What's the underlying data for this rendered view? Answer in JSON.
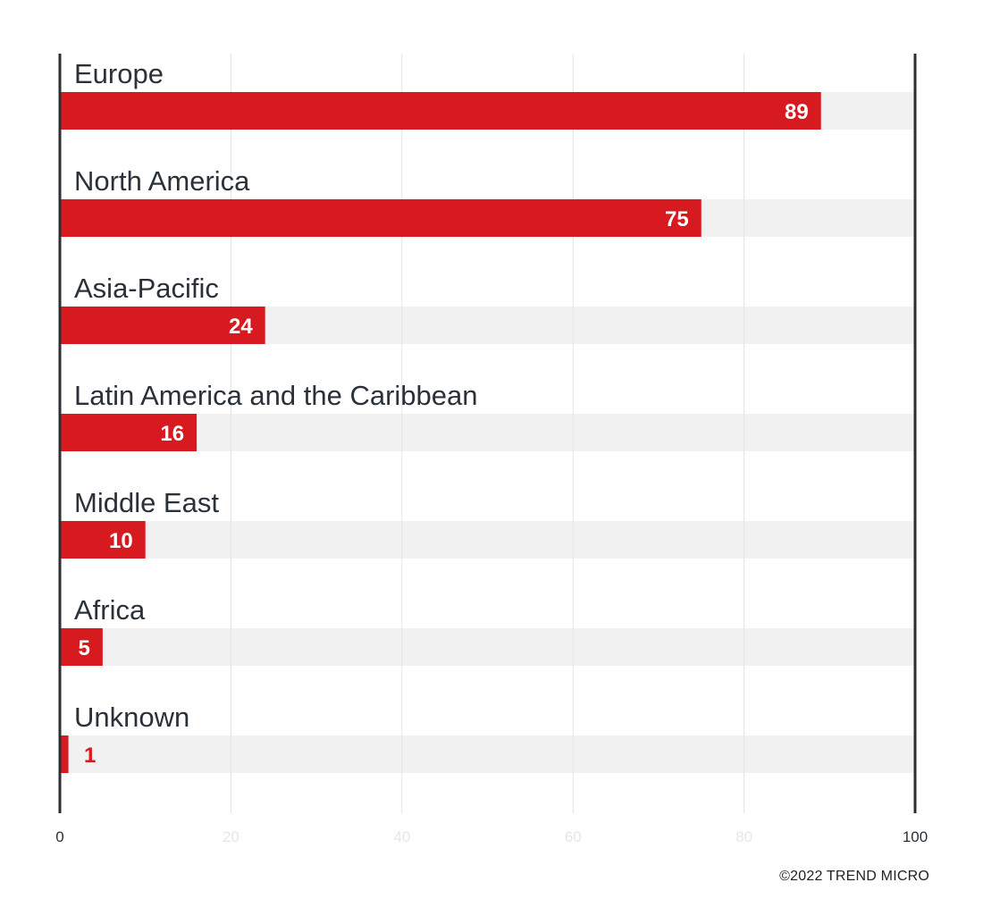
{
  "colors": {
    "bar": "#d71920",
    "track": "#f0f1f0",
    "axis": "#2b2f33",
    "grid": "#e3e4e3",
    "label": "#2b3138",
    "tick_strong": "#2b3138",
    "tick_light": "#e6e6e6",
    "value_text_on_bar": "#ffffff",
    "value_text_off_bar": "#d71920"
  },
  "chart_data": {
    "type": "bar",
    "orientation": "horizontal",
    "title": "",
    "xlabel": "",
    "ylabel": "",
    "categories": [
      "Europe",
      "North America",
      "Asia-Pacific",
      "Latin America and the Caribbean",
      "Middle East",
      "Africa",
      "Unknown"
    ],
    "values": [
      89,
      75,
      24,
      16,
      10,
      5,
      1
    ],
    "xlim": [
      0,
      100
    ],
    "xticks": [
      "0",
      "20",
      "40",
      "60",
      "80",
      "100"
    ],
    "grid": true,
    "legend": "none"
  },
  "footer": {
    "copyright": "©2022 TREND MICRO"
  }
}
